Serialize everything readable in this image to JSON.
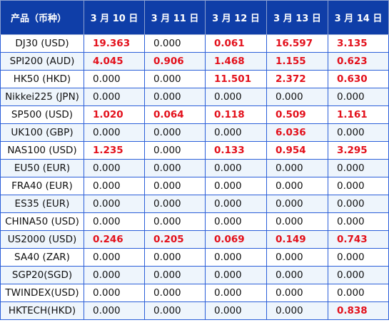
{
  "table": {
    "headers": [
      "产品（币种）",
      "3 月 10 日",
      "3 月 11 日",
      "3 月 12 日",
      "3 月 13 日",
      "3 月 14 日"
    ],
    "highlight_color": "#e3101b",
    "header_bg": "#0f3ea8",
    "rows": [
      {
        "name": "DJ30 (USD)",
        "values": [
          "19.363",
          "0.000",
          "0.061",
          "16.597",
          "3.135"
        ]
      },
      {
        "name": "SPI200 (AUD)",
        "values": [
          "4.045",
          "0.906",
          "1.468",
          "1.155",
          "0.623"
        ]
      },
      {
        "name": "HK50 (HKD)",
        "values": [
          "0.000",
          "0.000",
          "11.501",
          "2.372",
          "0.630"
        ]
      },
      {
        "name": "Nikkei225 (JPN)",
        "values": [
          "0.000",
          "0.000",
          "0.000",
          "0.000",
          "0.000"
        ]
      },
      {
        "name": "SP500 (USD)",
        "values": [
          "1.020",
          "0.064",
          "0.118",
          "0.509",
          "1.161"
        ]
      },
      {
        "name": "UK100 (GBP)",
        "values": [
          "0.000",
          "0.000",
          "0.000",
          "6.036",
          "0.000"
        ]
      },
      {
        "name": "NAS100 (USD)",
        "values": [
          "1.235",
          "0.000",
          "0.133",
          "0.954",
          "3.295"
        ]
      },
      {
        "name": "EU50 (EUR)",
        "values": [
          "0.000",
          "0.000",
          "0.000",
          "0.000",
          "0.000"
        ]
      },
      {
        "name": "FRA40 (EUR)",
        "values": [
          "0.000",
          "0.000",
          "0.000",
          "0.000",
          "0.000"
        ]
      },
      {
        "name": "ES35 (EUR)",
        "values": [
          "0.000",
          "0.000",
          "0.000",
          "0.000",
          "0.000"
        ]
      },
      {
        "name": "CHINA50 (USD)",
        "values": [
          "0.000",
          "0.000",
          "0.000",
          "0.000",
          "0.000"
        ]
      },
      {
        "name": "US2000 (USD)",
        "values": [
          "0.246",
          "0.205",
          "0.069",
          "0.149",
          "0.743"
        ]
      },
      {
        "name": "SA40 (ZAR)",
        "values": [
          "0.000",
          "0.000",
          "0.000",
          "0.000",
          "0.000"
        ]
      },
      {
        "name": "SGP20(SGD)",
        "values": [
          "0.000",
          "0.000",
          "0.000",
          "0.000",
          "0.000"
        ]
      },
      {
        "name": "TWINDEX(USD)",
        "values": [
          "0.000",
          "0.000",
          "0.000",
          "0.000",
          "0.000"
        ]
      },
      {
        "name": "HKTECH(HKD)",
        "values": [
          "0.000",
          "0.000",
          "0.000",
          "0.000",
          "0.838"
        ]
      }
    ]
  }
}
